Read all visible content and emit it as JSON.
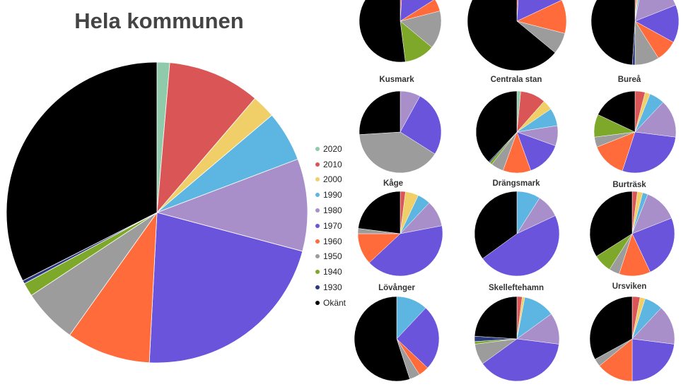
{
  "categories": [
    "2020",
    "2010",
    "2000",
    "1990",
    "1980",
    "1970",
    "1960",
    "1950",
    "1940",
    "1930",
    "Okänt"
  ],
  "colors": [
    "#8FCBAA",
    "#DA5555",
    "#F0CE68",
    "#5DB6E2",
    "#A98FCA",
    "#6A54DB",
    "#FF6B3A",
    "#9C9C9C",
    "#7EA82A",
    "#2B3A7E",
    "#000000"
  ],
  "chart_data": [
    {
      "type": "pie",
      "title": "Hela kommunen",
      "categories": [
        "2020",
        "2010",
        "2000",
        "1990",
        "1980",
        "1970",
        "1960",
        "1950",
        "1940",
        "1930",
        "Okänt"
      ],
      "values": [
        1.5,
        11,
        2.8,
        6,
        11,
        24,
        10,
        6.5,
        1.6,
        0.4,
        36
      ]
    },
    {
      "type": "pie",
      "title": "",
      "values": [
        0,
        1,
        0,
        0,
        0,
        15,
        5,
        15,
        12,
        0,
        52
      ]
    },
    {
      "type": "pie",
      "title": "",
      "values": [
        0,
        1,
        0,
        0,
        0,
        17,
        11,
        7,
        0,
        0,
        64
      ]
    },
    {
      "type": "pie",
      "title": "",
      "values": [
        0,
        1,
        1,
        1,
        16,
        14,
        8,
        9,
        0,
        1,
        49
      ]
    },
    {
      "type": "pie",
      "title": "Kusmark",
      "values": [
        0,
        0,
        0,
        0,
        8,
        26,
        0,
        40,
        0,
        0,
        26
      ]
    },
    {
      "type": "pie",
      "title": "Centrala stan",
      "values": [
        1.5,
        10,
        4,
        7,
        8,
        14,
        11,
        5,
        1,
        0.5,
        38
      ]
    },
    {
      "type": "pie",
      "title": "Bureå",
      "values": [
        0,
        4,
        2,
        6,
        15,
        28,
        14,
        4,
        9,
        0,
        18
      ]
    },
    {
      "type": "pie",
      "title": "Kåge",
      "values": [
        0,
        2,
        5,
        5,
        10,
        41,
        12,
        2,
        0,
        0,
        23
      ]
    },
    {
      "type": "pie",
      "title": "Drängsmark",
      "values": [
        0,
        0,
        0,
        9,
        9,
        47,
        0,
        0,
        0,
        0,
        35
      ]
    },
    {
      "type": "pie",
      "title": "Burträsk",
      "values": [
        0,
        2,
        2,
        2,
        13,
        24,
        12,
        4,
        7,
        0,
        34
      ]
    },
    {
      "type": "pie",
      "title": "Lövånger",
      "values": [
        0,
        0,
        0,
        12,
        0,
        25,
        4,
        4,
        0,
        0,
        55
      ]
    },
    {
      "type": "pie",
      "title": "Skelleftehamn",
      "values": [
        0,
        2,
        1,
        12,
        12,
        38,
        0,
        8,
        1,
        2,
        24
      ]
    },
    {
      "type": "pie",
      "title": "Ursviken",
      "values": [
        0,
        3,
        2,
        7,
        15,
        23,
        14,
        3,
        0,
        0,
        33
      ]
    }
  ]
}
